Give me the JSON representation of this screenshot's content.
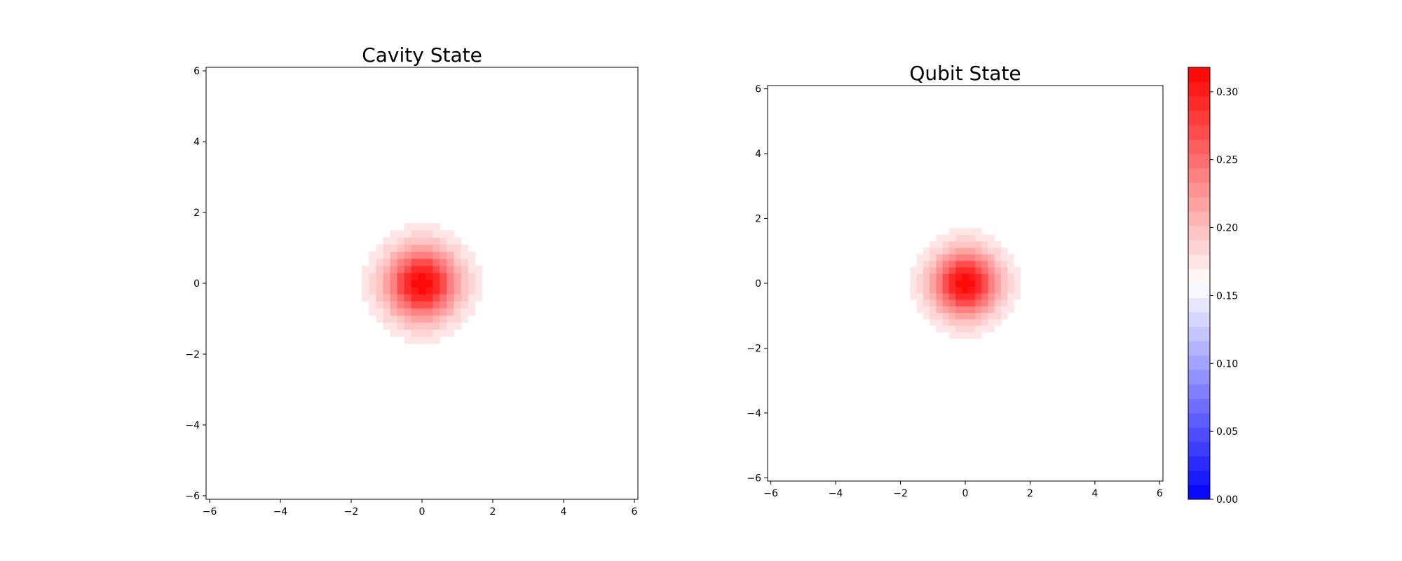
{
  "chart_data": [
    {
      "type": "heatmap",
      "title": "Cavity State",
      "xlabel": "",
      "ylabel": "",
      "xlim": [
        -6.1,
        6.1
      ],
      "ylim": [
        -6.1,
        6.1
      ],
      "x_ticks": [
        -6,
        -4,
        -2,
        0,
        2,
        4,
        6
      ],
      "y_ticks": [
        -6,
        -4,
        -2,
        0,
        2,
        4,
        6
      ],
      "grid": false,
      "peak_value": 0.318,
      "peak_center": [
        0.0,
        0.0
      ],
      "gaussian_sigma": 0.71,
      "pixel_step": 0.2
    },
    {
      "type": "heatmap",
      "title": "Qubit State",
      "xlabel": "",
      "ylabel": "",
      "xlim": [
        -6.1,
        6.1
      ],
      "ylim": [
        -6.1,
        6.1
      ],
      "x_ticks": [
        -6,
        -4,
        -2,
        0,
        2,
        4,
        6
      ],
      "y_ticks": [
        -6,
        -4,
        -2,
        0,
        2,
        4,
        6
      ],
      "grid": false,
      "peak_value": 0.318,
      "peak_center": [
        0.0,
        0.0
      ],
      "gaussian_sigma": 0.71,
      "pixel_step": 0.2
    }
  ],
  "colorbar": {
    "vmin": 0.0,
    "vmax": 0.318,
    "levels": 30,
    "center": 0.159,
    "tick_labels": [
      "0.00",
      "0.05",
      "0.10",
      "0.15",
      "0.20",
      "0.25",
      "0.30"
    ],
    "colors": {
      "low": "#0000ff",
      "mid": "#ffffff",
      "high": "#ff0000"
    }
  }
}
